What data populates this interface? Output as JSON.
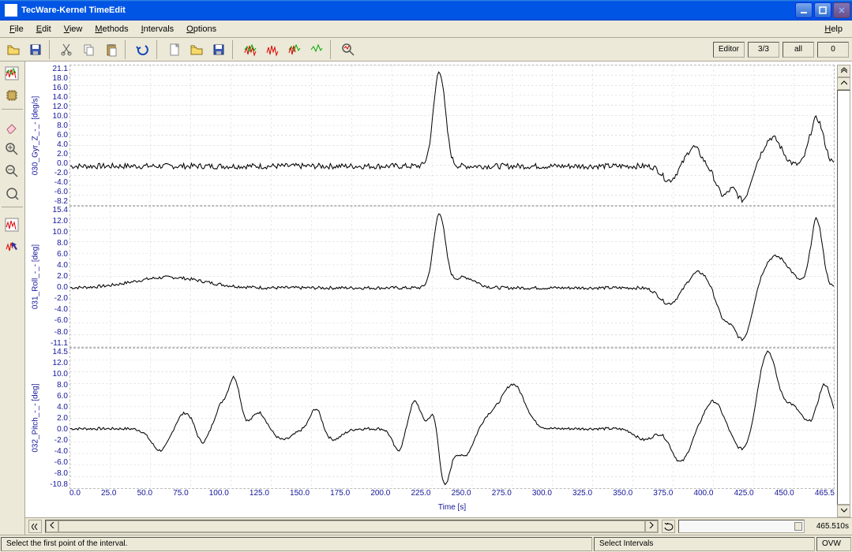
{
  "window": {
    "title": "TecWare-Kernel TimeEdit"
  },
  "menu": {
    "file": "File",
    "edit": "Edit",
    "view": "View",
    "methods": "Methods",
    "intervals": "Intervals",
    "options": "Options",
    "help": "Help"
  },
  "toolbar_panels": {
    "editor": "Editor",
    "counter": "3/3",
    "all": "all",
    "zero": "0"
  },
  "sidebar_icons": [
    "waveform-color-icon",
    "chip-icon",
    "eraser-icon",
    "zoom-in-icon",
    "zoom-out-icon",
    "zoom-fit-icon",
    "waveform-box-icon",
    "arrow-chart-icon"
  ],
  "toolbar_icons": [
    "open-icon",
    "save-icon",
    "cut-icon",
    "copy-icon",
    "paste-icon",
    "undo-icon",
    "new-page-icon",
    "open-signal-icon",
    "save-signal-icon",
    "signal1-icon",
    "signal2-icon",
    "signal3-icon",
    "signal4-icon",
    "find-signal-icon"
  ],
  "x_axis": {
    "label": "Time [s]",
    "ticks": [
      "0.0",
      "25.0",
      "50.0",
      "75.0",
      "100.0",
      "125.0",
      "150.0",
      "175.0",
      "200.0",
      "225.0",
      "250.0",
      "275.0",
      "300.0",
      "325.0",
      "350.0",
      "375.0",
      "400.0",
      "425.0",
      "450.0",
      "465.5"
    ],
    "min": 0.0,
    "max": 465.5,
    "grid_color": "#cccccc",
    "tick_color": "#15159a",
    "tick_fontsize": 10
  },
  "charts": [
    {
      "name": "030_Gyr_Z_-_-",
      "unit": "[deg/s]",
      "ylim": [
        -8.2,
        21.1
      ],
      "yticks": [
        "21.1",
        "18.0",
        "16.0",
        "14.0",
        "12.0",
        "10.0",
        "8.0",
        "6.0",
        "4.0",
        "2.0",
        "0.0",
        "-2.0",
        "-4.0",
        "-6.0",
        "-8.2"
      ],
      "color": "#000000",
      "label_color": "#15159a",
      "noise_amp": 1.2,
      "events": [
        {
          "t": 225,
          "h": 20,
          "w": 5
        },
        {
          "t": 365,
          "h": -3,
          "w": 6
        },
        {
          "t": 380,
          "h": 4,
          "w": 6
        },
        {
          "t": 398,
          "h": -6,
          "w": 6
        },
        {
          "t": 410,
          "h": -7,
          "w": 6
        },
        {
          "t": 428,
          "h": 6,
          "w": 8
        },
        {
          "t": 455,
          "h": 10,
          "w": 6
        }
      ]
    },
    {
      "name": "031_Roll_-_-",
      "unit": "[deg]",
      "ylim": [
        -11.1,
        15.4
      ],
      "yticks": [
        "15.4",
        "12.0",
        "10.0",
        "8.0",
        "6.0",
        "4.0",
        "2.0",
        "0.0",
        "-2.0",
        "-4.0",
        "-6.0",
        "-8.0",
        "-11.1"
      ],
      "color": "#000000",
      "label_color": "#15159a",
      "noise_amp": 0.6,
      "events": [
        {
          "t": 60,
          "h": 2,
          "w": 30
        },
        {
          "t": 225,
          "h": 14,
          "w": 5
        },
        {
          "t": 240,
          "h": 2,
          "w": 10
        },
        {
          "t": 365,
          "h": -3,
          "w": 8
        },
        {
          "t": 383,
          "h": 3,
          "w": 8
        },
        {
          "t": 398,
          "h": -5,
          "w": 6
        },
        {
          "t": 410,
          "h": -10,
          "w": 8
        },
        {
          "t": 430,
          "h": 6,
          "w": 12
        },
        {
          "t": 455,
          "h": 13,
          "w": 5
        }
      ]
    },
    {
      "name": "032_Pitch_-_-",
      "unit": "[deg]",
      "ylim": [
        -10.8,
        14.5
      ],
      "yticks": [
        "14.5",
        "12.0",
        "10.0",
        "8.0",
        "6.0",
        "4.0",
        "2.0",
        "0.0",
        "-2.0",
        "-4.0",
        "-6.0",
        "-8.0",
        "-10.8"
      ],
      "color": "#000000",
      "label_color": "#15159a",
      "noise_amp": 0.5,
      "events": [
        {
          "t": 55,
          "h": -4,
          "w": 8
        },
        {
          "t": 70,
          "h": 3,
          "w": 8
        },
        {
          "t": 80,
          "h": -3,
          "w": 5
        },
        {
          "t": 92,
          "h": 4,
          "w": 5
        },
        {
          "t": 100,
          "h": 9,
          "w": 5
        },
        {
          "t": 115,
          "h": 3,
          "w": 6
        },
        {
          "t": 130,
          "h": -2,
          "w": 8
        },
        {
          "t": 150,
          "h": 4,
          "w": 5
        },
        {
          "t": 160,
          "h": -2,
          "w": 8
        },
        {
          "t": 200,
          "h": -4,
          "w": 5
        },
        {
          "t": 210,
          "h": 5,
          "w": 5
        },
        {
          "t": 222,
          "h": 4,
          "w": 4
        },
        {
          "t": 228,
          "h": -10,
          "w": 5
        },
        {
          "t": 240,
          "h": -5,
          "w": 8
        },
        {
          "t": 255,
          "h": 2,
          "w": 8
        },
        {
          "t": 270,
          "h": 8,
          "w": 10
        },
        {
          "t": 350,
          "h": -2,
          "w": 8
        },
        {
          "t": 372,
          "h": -6,
          "w": 8
        },
        {
          "t": 392,
          "h": 5,
          "w": 8
        },
        {
          "t": 410,
          "h": -4,
          "w": 8
        },
        {
          "t": 425,
          "h": 14,
          "w": 8
        },
        {
          "t": 440,
          "h": 4,
          "w": 8
        },
        {
          "t": 460,
          "h": 8,
          "w": 6
        }
      ]
    }
  ],
  "zoomrow": {
    "time_value": "465.510s"
  },
  "status": {
    "hint": "Select the first point of the interval.",
    "mode": "Select Intervals",
    "ovw": "OVW"
  },
  "colors": {
    "titlebar_grad_top": "#3c8cde",
    "titlebar_grad_mid": "#0055e5",
    "bg": "#ece9d8",
    "axis_label": "#15159a",
    "grid": "#cccccc",
    "trace": "#000000"
  }
}
